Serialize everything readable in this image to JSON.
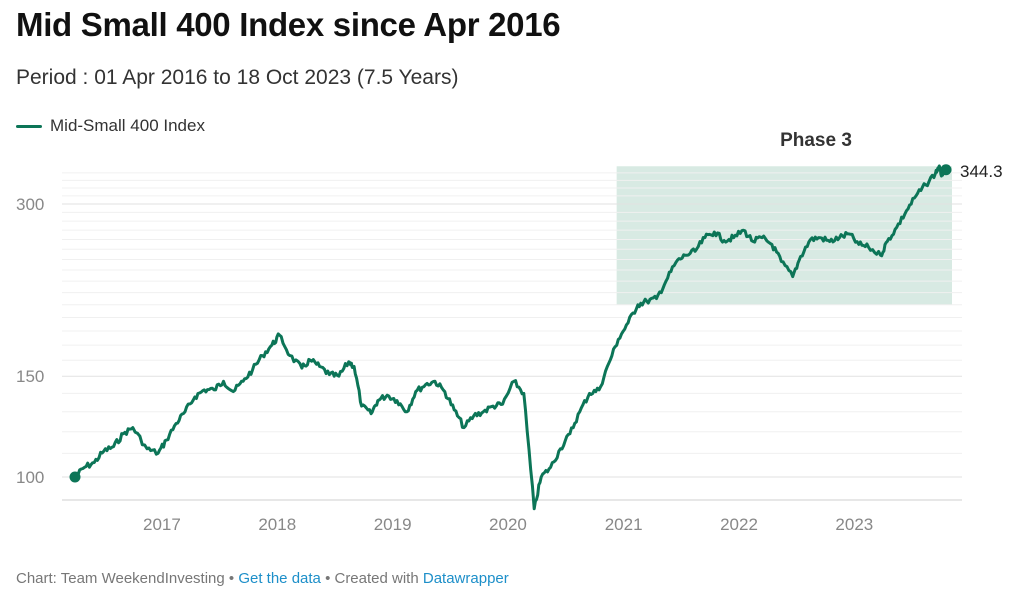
{
  "title": "Mid Small 400 Index since Apr 2016",
  "subtitle": "Period : 01 Apr 2016 to 18 Oct 2023 (7.5 Years)",
  "colors": {
    "line": "#0c7557",
    "highlight": "#d8eae3",
    "grid": "#e2e2e2"
  },
  "footer": {
    "prefix": "Chart: Team WeekendInvesting •",
    "link1": "Get the data",
    "middle": "• Created with",
    "link2": "Datawrapper"
  },
  "chart_data": {
    "type": "line",
    "title": "Mid Small 400 Index since Apr 2016",
    "subtitle": "Period : 01 Apr 2016 to 18 Oct 2023 (7.5 Years)",
    "xlabel": "",
    "ylabel": "",
    "yscale": "log",
    "ylim": [
      92,
      350
    ],
    "xlim": [
      "2016-04-01",
      "2023-10-18"
    ],
    "y_ticks": [
      100,
      150,
      300
    ],
    "x_ticks": [
      "2017",
      "2018",
      "2019",
      "2020",
      "2021",
      "2022",
      "2023"
    ],
    "grid": true,
    "legend": "top-left",
    "highlight": {
      "label": "Phase 3",
      "x_start": "2021-01-01",
      "x_end": "2023-10-31",
      "y_start": 200,
      "y_end": 345
    },
    "end_label": "344.3",
    "series": [
      {
        "name": "Mid-Small 400 Index",
        "points": [
          [
            "2016-04-01",
            100
          ],
          [
            "2016-05-01",
            104
          ],
          [
            "2016-06-01",
            106
          ],
          [
            "2016-07-01",
            111
          ],
          [
            "2016-08-01",
            113
          ],
          [
            "2016-09-01",
            119
          ],
          [
            "2016-10-01",
            122
          ],
          [
            "2016-11-15",
            112
          ],
          [
            "2016-12-20",
            110
          ],
          [
            "2017-01-15",
            116
          ],
          [
            "2017-02-15",
            124
          ],
          [
            "2017-03-15",
            130
          ],
          [
            "2017-04-15",
            138
          ],
          [
            "2017-05-15",
            142
          ],
          [
            "2017-06-15",
            142
          ],
          [
            "2017-07-15",
            147
          ],
          [
            "2017-08-15",
            141
          ],
          [
            "2017-09-15",
            147
          ],
          [
            "2017-10-15",
            154
          ],
          [
            "2017-11-15",
            163
          ],
          [
            "2017-12-15",
            170
          ],
          [
            "2018-01-08",
            177
          ],
          [
            "2018-02-10",
            163
          ],
          [
            "2018-03-20",
            155
          ],
          [
            "2018-04-15",
            160
          ],
          [
            "2018-05-15",
            156
          ],
          [
            "2018-06-15",
            151
          ],
          [
            "2018-07-15",
            150
          ],
          [
            "2018-08-15",
            159
          ],
          [
            "2018-09-01",
            156
          ],
          [
            "2018-09-25",
            133
          ],
          [
            "2018-10-25",
            129
          ],
          [
            "2018-11-15",
            136
          ],
          [
            "2018-12-15",
            139
          ],
          [
            "2019-01-15",
            136
          ],
          [
            "2019-02-15",
            130
          ],
          [
            "2019-03-15",
            141
          ],
          [
            "2019-04-15",
            145
          ],
          [
            "2019-05-15",
            147
          ],
          [
            "2019-06-15",
            141
          ],
          [
            "2019-07-15",
            131
          ],
          [
            "2019-08-15",
            122
          ],
          [
            "2019-09-15",
            128
          ],
          [
            "2019-10-15",
            130
          ],
          [
            "2019-11-15",
            133
          ],
          [
            "2019-12-15",
            134
          ],
          [
            "2020-01-20",
            147
          ],
          [
            "2020-02-20",
            140
          ],
          [
            "2020-03-24",
            88
          ],
          [
            "2020-04-15",
            100
          ],
          [
            "2020-05-15",
            104
          ],
          [
            "2020-06-15",
            112
          ],
          [
            "2020-07-15",
            119
          ],
          [
            "2020-08-15",
            130
          ],
          [
            "2020-09-15",
            140
          ],
          [
            "2020-10-15",
            142
          ],
          [
            "2020-11-15",
            158
          ],
          [
            "2020-12-15",
            174
          ],
          [
            "2021-01-15",
            186
          ],
          [
            "2021-02-15",
            200
          ],
          [
            "2021-03-15",
            203
          ],
          [
            "2021-04-15",
            205
          ],
          [
            "2021-05-15",
            220
          ],
          [
            "2021-06-15",
            237
          ],
          [
            "2021-07-15",
            244
          ],
          [
            "2021-08-15",
            248
          ],
          [
            "2021-09-15",
            262
          ],
          [
            "2021-10-15",
            268
          ],
          [
            "2021-11-15",
            259
          ],
          [
            "2021-12-15",
            262
          ],
          [
            "2022-01-15",
            270
          ],
          [
            "2022-02-15",
            258
          ],
          [
            "2022-03-15",
            262
          ],
          [
            "2022-04-15",
            255
          ],
          [
            "2022-05-15",
            238
          ],
          [
            "2022-06-20",
            224
          ],
          [
            "2022-07-15",
            243
          ],
          [
            "2022-08-15",
            260
          ],
          [
            "2022-09-15",
            262
          ],
          [
            "2022-10-15",
            258
          ],
          [
            "2022-11-15",
            262
          ],
          [
            "2022-12-15",
            266
          ],
          [
            "2023-01-15",
            255
          ],
          [
            "2023-02-15",
            252
          ],
          [
            "2023-03-25",
            244
          ],
          [
            "2023-04-15",
            258
          ],
          [
            "2023-05-15",
            273
          ],
          [
            "2023-06-15",
            292
          ],
          [
            "2023-07-15",
            310
          ],
          [
            "2023-08-15",
            324
          ],
          [
            "2023-09-15",
            340
          ],
          [
            "2023-09-25",
            348
          ],
          [
            "2023-10-05",
            337
          ],
          [
            "2023-10-18",
            344.3
          ]
        ]
      }
    ]
  }
}
